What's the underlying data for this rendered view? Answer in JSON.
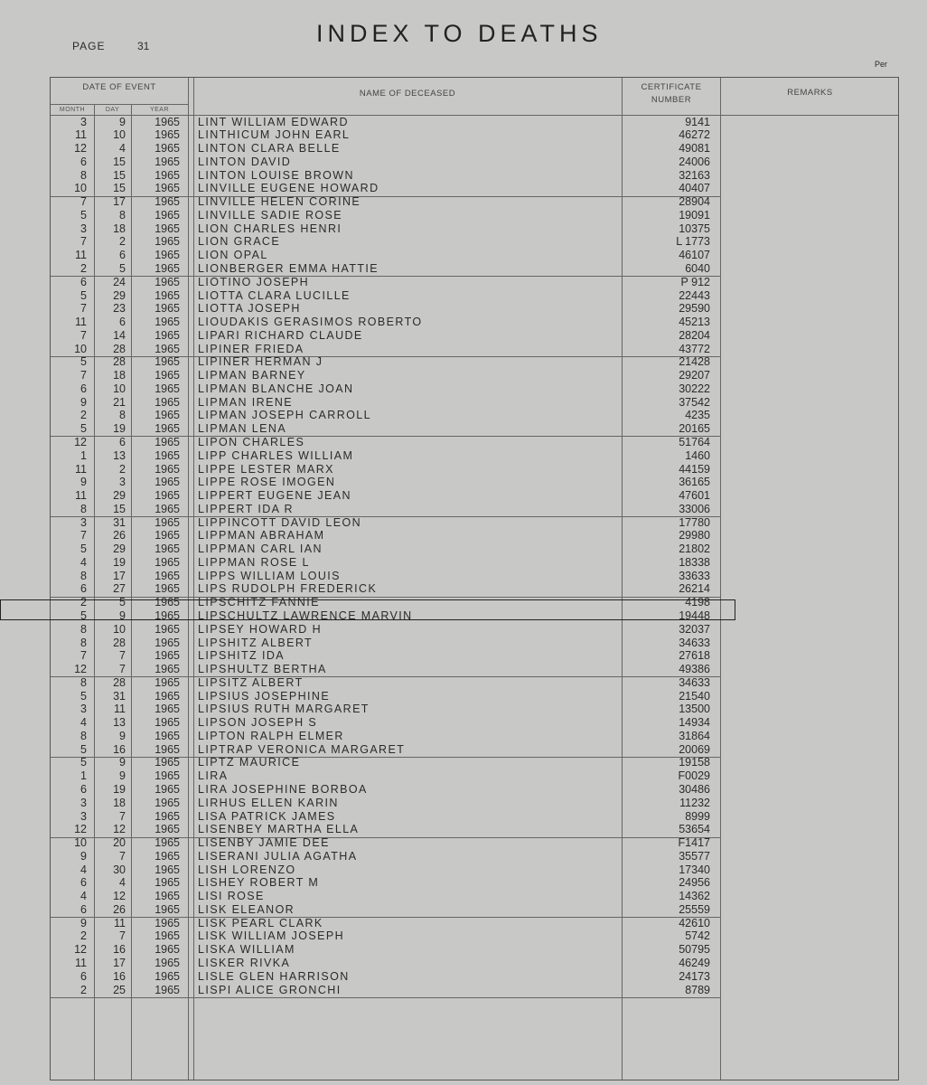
{
  "title": "INDEX TO DEATHS",
  "page_label": "PAGE",
  "page_number": "31",
  "corner_mark": "Per",
  "headers": {
    "date_of_event": "DATE OF EVENT",
    "month": "MONTH",
    "day": "DAY",
    "year": "YEAR",
    "name": "NAME OF DECEASED",
    "certificate": "CERTIFICATE NUMBER",
    "remarks": "REMARKS"
  },
  "highlighted_row": "LIPSCHULTZ LAWRENCE MARVIN",
  "rows": [
    [
      "3",
      "9",
      "1965",
      "LINT WILLIAM EDWARD",
      "9141"
    ],
    [
      "11",
      "10",
      "1965",
      "LINTHICUM JOHN EARL",
      "46272"
    ],
    [
      "12",
      "4",
      "1965",
      "LINTON CLARA BELLE",
      "49081"
    ],
    [
      "6",
      "15",
      "1965",
      "LINTON DAVID",
      "24006"
    ],
    [
      "8",
      "15",
      "1965",
      "LINTON LOUISE BROWN",
      "32163"
    ],
    [
      "10",
      "15",
      "1965",
      "LINVILLE EUGENE HOWARD",
      "40407"
    ],
    [
      "7",
      "17",
      "1965",
      "LINVILLE HELEN CORINE",
      "28904"
    ],
    [
      "5",
      "8",
      "1965",
      "LINVILLE SADIE ROSE",
      "19091"
    ],
    [
      "3",
      "18",
      "1965",
      "LION CHARLES HENRI",
      "10375"
    ],
    [
      "7",
      "2",
      "1965",
      "LION GRACE",
      "L 1773"
    ],
    [
      "11",
      "6",
      "1965",
      "LION OPAL",
      "46107"
    ],
    [
      "2",
      "5",
      "1965",
      "LIONBERGER EMMA HATTIE",
      "6040"
    ],
    [
      "6",
      "24",
      "1965",
      "LIOTINO JOSEPH",
      "P  912"
    ],
    [
      "5",
      "29",
      "1965",
      "LIOTTA CLARA LUCILLE",
      "22443"
    ],
    [
      "7",
      "23",
      "1965",
      "LIOTTA JOSEPH",
      "29590"
    ],
    [
      "11",
      "6",
      "1965",
      "LIOUDAKIS GERASIMOS ROBERTO",
      "45213"
    ],
    [
      "7",
      "14",
      "1965",
      "LIPARI RICHARD CLAUDE",
      "28204"
    ],
    [
      "10",
      "28",
      "1965",
      "LIPINER FRIEDA",
      "43772"
    ],
    [
      "5",
      "28",
      "1965",
      "LIPINER HERMAN J",
      "21428"
    ],
    [
      "7",
      "18",
      "1965",
      "LIPMAN BARNEY",
      "29207"
    ],
    [
      "6",
      "10",
      "1965",
      "LIPMAN BLANCHE JOAN",
      "30222"
    ],
    [
      "9",
      "21",
      "1965",
      "LIPMAN IRENE",
      "37542"
    ],
    [
      "2",
      "8",
      "1965",
      "LIPMAN JOSEPH CARROLL",
      "4235"
    ],
    [
      "5",
      "19",
      "1965",
      "LIPMAN LENA",
      "20165"
    ],
    [
      "12",
      "6",
      "1965",
      "LIPON CHARLES",
      "51764"
    ],
    [
      "1",
      "13",
      "1965",
      "LIPP CHARLES WILLIAM",
      "1460"
    ],
    [
      "11",
      "2",
      "1965",
      "LIPPE LESTER MARX",
      "44159"
    ],
    [
      "9",
      "3",
      "1965",
      "LIPPE ROSE IMOGEN",
      "36165"
    ],
    [
      "11",
      "29",
      "1965",
      "LIPPERT EUGENE JEAN",
      "47601"
    ],
    [
      "8",
      "15",
      "1965",
      "LIPPERT IDA R",
      "33006"
    ],
    [
      "3",
      "31",
      "1965",
      "LIPPINCOTT DAVID LEON",
      "17780"
    ],
    [
      "7",
      "26",
      "1965",
      "LIPPMAN ABRAHAM",
      "29980"
    ],
    [
      "5",
      "29",
      "1965",
      "LIPPMAN CARL IAN",
      "21802"
    ],
    [
      "4",
      "19",
      "1965",
      "LIPPMAN ROSE L",
      "18338"
    ],
    [
      "8",
      "17",
      "1965",
      "LIPPS WILLIAM LOUIS",
      "33633"
    ],
    [
      "6",
      "27",
      "1965",
      "LIPS RUDOLPH FREDERICK",
      "26214"
    ],
    [
      "2",
      "5",
      "1965",
      "LIPSCHITZ FANNIE",
      "4198"
    ],
    [
      "5",
      "9",
      "1965",
      "LIPSCHULTZ LAWRENCE MARVIN",
      "19448"
    ],
    [
      "8",
      "10",
      "1965",
      "LIPSEY HOWARD H",
      "32037"
    ],
    [
      "8",
      "28",
      "1965",
      "LIPSHITZ ALBERT",
      "34633"
    ],
    [
      "7",
      "7",
      "1965",
      "LIPSHITZ IDA",
      "27618"
    ],
    [
      "12",
      "7",
      "1965",
      "LIPSHULTZ BERTHA",
      "49386"
    ],
    [
      "8",
      "28",
      "1965",
      "LIPSITZ ALBERT",
      "34633"
    ],
    [
      "5",
      "31",
      "1965",
      "LIPSIUS JOSEPHINE",
      "21540"
    ],
    [
      "3",
      "11",
      "1965",
      "LIPSIUS RUTH MARGARET",
      "13500"
    ],
    [
      "4",
      "13",
      "1965",
      "LIPSON JOSEPH S",
      "14934"
    ],
    [
      "8",
      "9",
      "1965",
      "LIPTON RALPH ELMER",
      "31864"
    ],
    [
      "5",
      "16",
      "1965",
      "LIPTRAP VERONICA MARGARET",
      "20069"
    ],
    [
      "5",
      "9",
      "1965",
      "LIPTZ MAURICE",
      "19158"
    ],
    [
      "1",
      "9",
      "1965",
      "LIRA",
      "F0029"
    ],
    [
      "6",
      "19",
      "1965",
      "LIRA JOSEPHINE BORBOA",
      "30486"
    ],
    [
      "3",
      "18",
      "1965",
      "LIRHUS ELLEN KARIN",
      "11232"
    ],
    [
      "3",
      "7",
      "1965",
      "LISA PATRICK JAMES",
      "8999"
    ],
    [
      "12",
      "12",
      "1965",
      "LISENBEY MARTHA ELLA",
      "53654"
    ],
    [
      "10",
      "20",
      "1965",
      "LISENBY JAMIE DEE",
      "F1417"
    ],
    [
      "9",
      "7",
      "1965",
      "LISERANI JULIA AGATHA",
      "35577"
    ],
    [
      "4",
      "30",
      "1965",
      "LISH LORENZO",
      "17340"
    ],
    [
      "6",
      "4",
      "1965",
      "LISHEY ROBERT M",
      "24956"
    ],
    [
      "4",
      "12",
      "1965",
      "LISI ROSE",
      "14362"
    ],
    [
      "6",
      "26",
      "1965",
      "LISK ELEANOR",
      "25559"
    ],
    [
      "9",
      "11",
      "1965",
      "LISK PEARL CLARK",
      "42610"
    ],
    [
      "2",
      "7",
      "1965",
      "LISK WILLIAM JOSEPH",
      "5742"
    ],
    [
      "12",
      "16",
      "1965",
      "LISKA WILLIAM",
      "50795"
    ],
    [
      "11",
      "17",
      "1965",
      "LISKER RIVKA",
      "46249"
    ],
    [
      "6",
      "16",
      "1965",
      "LISLE GLEN HARRISON",
      "24173"
    ],
    [
      "2",
      "25",
      "1965",
      "LISPI ALICE GRONCHI",
      "8789"
    ]
  ]
}
